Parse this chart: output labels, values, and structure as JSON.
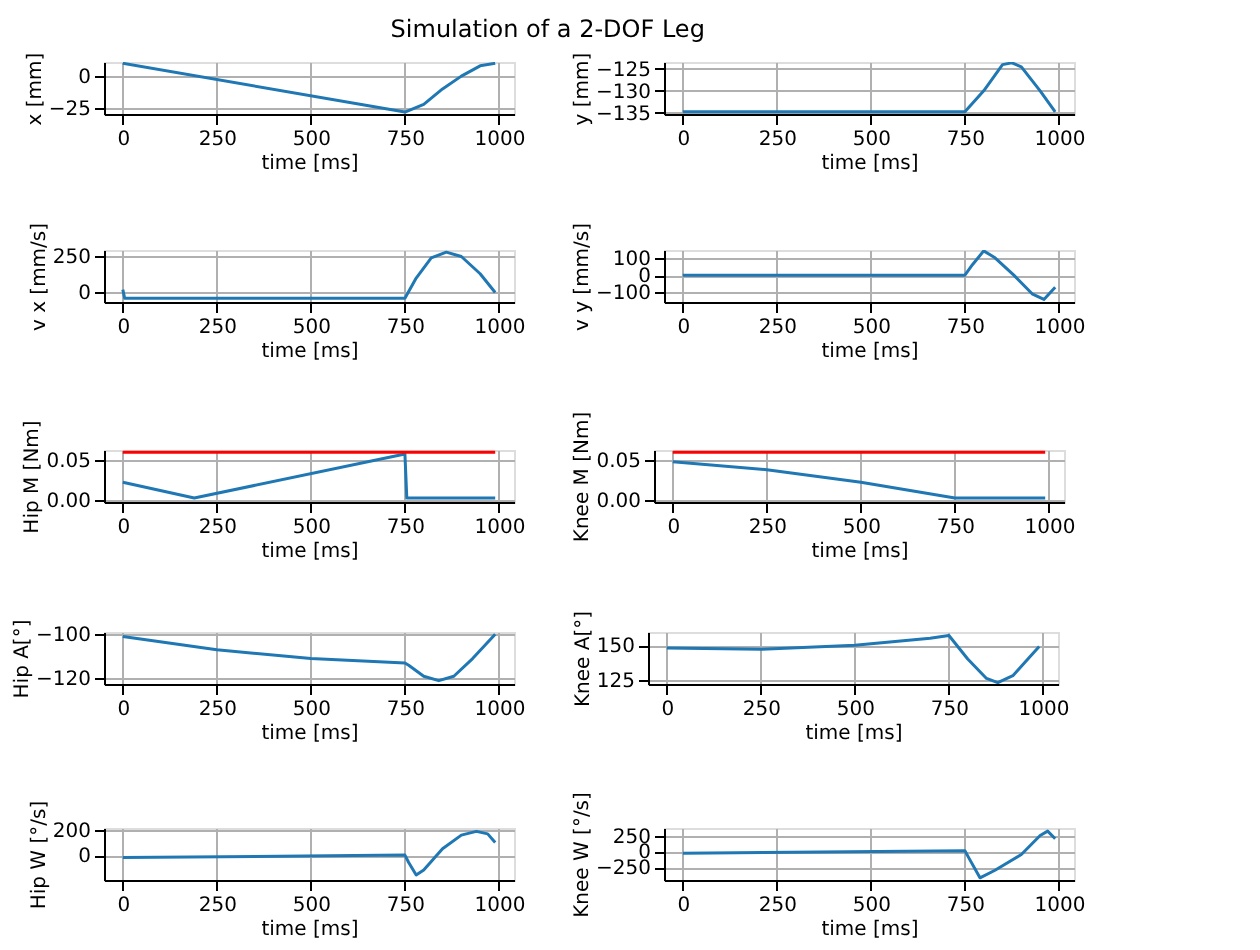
{
  "chart_data": [
    {
      "type": "line",
      "title": "Simulation of a 2-DOF Leg",
      "xlabel": "time [ms]",
      "ylabel": "x [mm]",
      "xlim": [
        -50,
        1040
      ],
      "xticks": [
        0,
        250,
        500,
        750,
        1000
      ],
      "ylim": [
        -29.5,
        11
      ],
      "yticks": [
        -25,
        0
      ],
      "grid": true,
      "series": [
        {
          "color": "#1f77b4",
          "x": [
            0,
            750,
            800,
            850,
            900,
            950,
            990
          ],
          "values": [
            10,
            -28,
            -22,
            -10,
            0,
            8,
            10
          ]
        }
      ]
    },
    {
      "type": "line",
      "xlabel": "time [ms]",
      "ylabel": "y [mm]",
      "xlim": [
        -50,
        1040
      ],
      "xticks": [
        0,
        250,
        500,
        750,
        1000
      ],
      "ylim": [
        -135.3,
        -123.4
      ],
      "yticks": [
        -135,
        -130,
        -125
      ],
      "grid": true,
      "series": [
        {
          "color": "#1f77b4",
          "x": [
            0,
            750,
            800,
            850,
            875,
            900,
            950,
            990
          ],
          "values": [
            -134.8,
            -134.8,
            -130,
            -124,
            -123.6,
            -124.5,
            -130,
            -134.8
          ]
        }
      ]
    },
    {
      "type": "line",
      "xlabel": "time [ms]",
      "ylabel": "v x [mm/s]",
      "xlim": [
        -50,
        1040
      ],
      "xticks": [
        0,
        250,
        500,
        750,
        1000
      ],
      "ylim": [
        -66,
        295
      ],
      "yticks": [
        0,
        250
      ],
      "grid": true,
      "series": [
        {
          "color": "#1f77b4",
          "x": [
            0,
            5,
            750,
            780,
            820,
            860,
            900,
            950,
            990
          ],
          "values": [
            20,
            -40,
            -40,
            100,
            240,
            280,
            250,
            130,
            0
          ]
        }
      ]
    },
    {
      "type": "line",
      "xlabel": "time [ms]",
      "ylabel": "v y [mm/s]",
      "xlim": [
        -50,
        1040
      ],
      "xticks": [
        0,
        250,
        500,
        750,
        1000
      ],
      "ylim": [
        -155,
        145
      ],
      "yticks": [
        -100,
        0,
        100
      ],
      "grid": true,
      "series": [
        {
          "color": "#1f77b4",
          "x": [
            0,
            750,
            770,
            800,
            830,
            880,
            930,
            960,
            990
          ],
          "values": [
            0,
            0,
            60,
            140,
            100,
            0,
            -110,
            -140,
            -70
          ]
        }
      ]
    },
    {
      "type": "line",
      "xlabel": "time [ms]",
      "ylabel": "Hip M [Nm]",
      "xlim": [
        -50,
        1040
      ],
      "xticks": [
        0,
        250,
        500,
        750,
        1000
      ],
      "ylim": [
        -0.003,
        0.063
      ],
      "yticks": [
        {
          "value": 0,
          "label": "0.00"
        },
        0.05
      ],
      "grid": true,
      "series": [
        {
          "color": "#1f77b4",
          "x": [
            0,
            190,
            750,
            755,
            990
          ],
          "values": [
            0.022,
            0.002,
            0.058,
            0.002,
            0.002
          ]
        },
        {
          "color": "#ff0000",
          "x": [
            0,
            990
          ],
          "values": [
            0.06,
            0.06
          ]
        }
      ]
    },
    {
      "type": "line",
      "xlabel": "time [ms]",
      "ylabel": "Knee M [Nm]",
      "xlim": [
        -50,
        1040
      ],
      "xticks": [
        0,
        250,
        500,
        750,
        1000
      ],
      "ylim": [
        -0.003,
        0.063
      ],
      "yticks": [
        {
          "value": 0,
          "label": "0.00"
        },
        0.05
      ],
      "grid": true,
      "series": [
        {
          "color": "#1f77b4",
          "x": [
            0,
            250,
            500,
            750,
            990
          ],
          "values": [
            0.048,
            0.038,
            0.022,
            0.002,
            0.002
          ]
        },
        {
          "color": "#ff0000",
          "x": [
            0,
            990
          ],
          "values": [
            0.06,
            0.06
          ]
        }
      ]
    },
    {
      "type": "line",
      "xlabel": "time [ms]",
      "ylabel": "Hip A[°]",
      "xlim": [
        -50,
        1040
      ],
      "xticks": [
        0,
        250,
        500,
        750,
        1000
      ],
      "ylim": [
        -122.5,
        -99
      ],
      "yticks": [
        -120,
        -100
      ],
      "grid": true,
      "series": [
        {
          "color": "#1f77b4",
          "x": [
            0,
            250,
            500,
            750,
            760,
            800,
            840,
            880,
            930,
            990
          ],
          "values": [
            -101,
            -107,
            -111,
            -113,
            -114,
            -119,
            -121,
            -119,
            -111,
            -100
          ]
        }
      ]
    },
    {
      "type": "line",
      "xlabel": "time [ms]",
      "ylabel": "Knee A[°]",
      "xlim": [
        -50,
        1040
      ],
      "xticks": [
        0,
        250,
        500,
        750,
        1000
      ],
      "ylim": [
        122,
        159.5
      ],
      "yticks": [
        125,
        150
      ],
      "grid": true,
      "series": [
        {
          "color": "#1f77b4",
          "x": [
            0,
            250,
            500,
            700,
            750,
            800,
            850,
            880,
            920,
            960,
            990
          ],
          "values": [
            148,
            147,
            150,
            155,
            157,
            140,
            126,
            123,
            128,
            140,
            149
          ]
        }
      ]
    },
    {
      "type": "line",
      "xlabel": "time [ms]",
      "ylabel": "Hip W [°/s]",
      "xlim": [
        -50,
        1040
      ],
      "xticks": [
        0,
        250,
        500,
        750,
        1000
      ],
      "ylim": [
        -200,
        217
      ],
      "yticks": [
        0,
        200
      ],
      "grid": true,
      "series": [
        {
          "color": "#1f77b4",
          "x": [
            0,
            750,
            760,
            780,
            800,
            850,
            900,
            940,
            970,
            990
          ],
          "values": [
            -20,
            0,
            -60,
            -160,
            -120,
            50,
            160,
            190,
            170,
            100
          ]
        }
      ]
    },
    {
      "type": "line",
      "xlabel": "time [ms]",
      "ylabel": "Knee W [°/s]",
      "xlim": [
        -50,
        1040
      ],
      "xticks": [
        0,
        250,
        500,
        750,
        1000
      ],
      "ylim": [
        -455,
        370
      ],
      "yticks": [
        -250,
        0,
        250
      ],
      "grid": true,
      "series": [
        {
          "color": "#1f77b4",
          "x": [
            0,
            750,
            760,
            790,
            830,
            900,
            950,
            970,
            990
          ],
          "values": [
            -30,
            10,
            -100,
            -420,
            -300,
            -50,
            250,
            320,
            200
          ]
        }
      ]
    }
  ]
}
